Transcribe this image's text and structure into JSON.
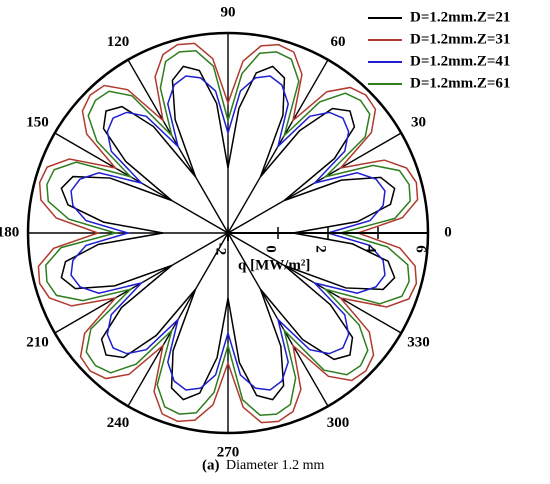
{
  "chart_data": {
    "type": "polar",
    "caption_label": "(a)",
    "caption": "Diameter 1.2 mm",
    "radial_label": "q [MW/m²]",
    "rlim": [
      -2,
      6
    ],
    "rticks": [
      -2,
      0,
      2,
      4,
      6
    ],
    "thetaticks": [
      0,
      30,
      60,
      90,
      120,
      150,
      180,
      210,
      240,
      270,
      300,
      330
    ],
    "theta": [
      0,
      5,
      10,
      15,
      20,
      25,
      30,
      35,
      40,
      45,
      50,
      55,
      60,
      65,
      70,
      75,
      80,
      85,
      90,
      95,
      100,
      105,
      110,
      115,
      120,
      125,
      130,
      135,
      140,
      145,
      150,
      155,
      160,
      165,
      170,
      175,
      180,
      185,
      190,
      195,
      200,
      205,
      210,
      215,
      220,
      225,
      230,
      235,
      240,
      245,
      250,
      255,
      260,
      265,
      270,
      275,
      280,
      285,
      290,
      295,
      300,
      305,
      310,
      315,
      320,
      325,
      330,
      335,
      340,
      345,
      350,
      355
    ],
    "series": [
      {
        "name": "D=1.2mm.Z=21",
        "color": "#000000",
        "values": [
          0.6,
          3.2,
          4.6,
          4.9,
          4.5,
          3.0,
          0.6,
          3.2,
          4.6,
          4.9,
          4.5,
          3.0,
          0.6,
          3.2,
          4.6,
          4.9,
          4.5,
          3.0,
          0.6,
          3.2,
          4.6,
          4.9,
          4.5,
          3.0,
          0.6,
          3.2,
          4.6,
          4.9,
          4.5,
          3.0,
          0.6,
          3.2,
          4.6,
          4.9,
          4.5,
          3.0,
          0.6,
          3.2,
          4.6,
          4.9,
          4.5,
          3.0,
          0.6,
          3.2,
          4.6,
          4.9,
          4.5,
          3.0,
          0.6,
          3.2,
          4.6,
          4.9,
          4.5,
          3.0,
          0.6,
          3.2,
          4.6,
          4.9,
          4.5,
          3.0,
          0.6,
          3.2,
          4.6,
          4.9,
          4.5,
          3.0,
          0.6,
          3.2,
          4.6,
          4.9,
          4.5,
          3.0
        ]
      },
      {
        "name": "D=1.2mm.Z=31",
        "color": "#b03a2e",
        "values": [
          3.2,
          5.0,
          5.7,
          5.8,
          5.6,
          4.9,
          3.2,
          5.0,
          5.7,
          5.8,
          5.6,
          4.9,
          3.2,
          5.0,
          5.7,
          5.8,
          5.6,
          4.9,
          3.2,
          5.0,
          5.7,
          5.8,
          5.6,
          4.9,
          3.2,
          5.0,
          5.7,
          5.8,
          5.6,
          4.9,
          3.2,
          5.0,
          5.7,
          5.8,
          5.6,
          4.9,
          3.2,
          5.0,
          5.7,
          5.8,
          5.6,
          4.9,
          3.2,
          5.0,
          5.7,
          5.8,
          5.6,
          4.9,
          3.2,
          5.0,
          5.7,
          5.8,
          5.6,
          4.9,
          3.2,
          5.0,
          5.7,
          5.8,
          5.6,
          4.9,
          3.2,
          5.0,
          5.7,
          5.8,
          5.6,
          4.9,
          3.2,
          5.0,
          5.7,
          5.8,
          5.6,
          4.9
        ]
      },
      {
        "name": "D=1.2mm.Z=41",
        "color": "#1f1fd0",
        "values": [
          2.0,
          3.7,
          4.3,
          4.5,
          4.3,
          3.7,
          2.0,
          3.7,
          4.3,
          4.5,
          4.3,
          3.7,
          2.0,
          3.7,
          4.3,
          4.5,
          4.3,
          3.7,
          2.0,
          3.7,
          4.3,
          4.5,
          4.3,
          3.7,
          2.0,
          3.7,
          4.3,
          4.5,
          4.3,
          3.7,
          2.0,
          3.7,
          4.3,
          4.5,
          4.3,
          3.7,
          2.0,
          3.7,
          4.3,
          4.5,
          4.3,
          3.7,
          2.0,
          3.7,
          4.3,
          4.5,
          4.3,
          3.7,
          2.0,
          3.7,
          4.3,
          4.5,
          4.3,
          3.7,
          2.0,
          3.7,
          4.3,
          4.5,
          4.3,
          3.7,
          2.0,
          3.7,
          4.3,
          4.5,
          4.3,
          3.7,
          2.0,
          3.7,
          4.3,
          4.5,
          4.3,
          3.7
        ]
      },
      {
        "name": "D=1.2mm.Z=61",
        "color": "#2e7d1e",
        "values": [
          2.5,
          4.7,
          5.4,
          5.5,
          5.3,
          4.4,
          2.5,
          4.7,
          5.4,
          5.5,
          5.3,
          4.4,
          2.5,
          4.7,
          5.4,
          5.5,
          5.3,
          4.4,
          2.5,
          4.7,
          5.4,
          5.5,
          5.3,
          4.4,
          2.5,
          4.7,
          5.4,
          5.5,
          5.3,
          4.4,
          2.5,
          4.7,
          5.4,
          5.5,
          5.3,
          4.4,
          2.5,
          4.7,
          5.4,
          5.5,
          5.3,
          4.4,
          2.5,
          4.7,
          5.4,
          5.5,
          5.3,
          4.4,
          2.5,
          4.7,
          5.4,
          5.5,
          5.3,
          4.4,
          2.5,
          4.7,
          5.4,
          5.5,
          5.3,
          4.4,
          2.5,
          4.7,
          5.4,
          5.5,
          5.3,
          4.4,
          2.5,
          4.7,
          5.4,
          5.5,
          5.3,
          4.4
        ]
      }
    ]
  }
}
